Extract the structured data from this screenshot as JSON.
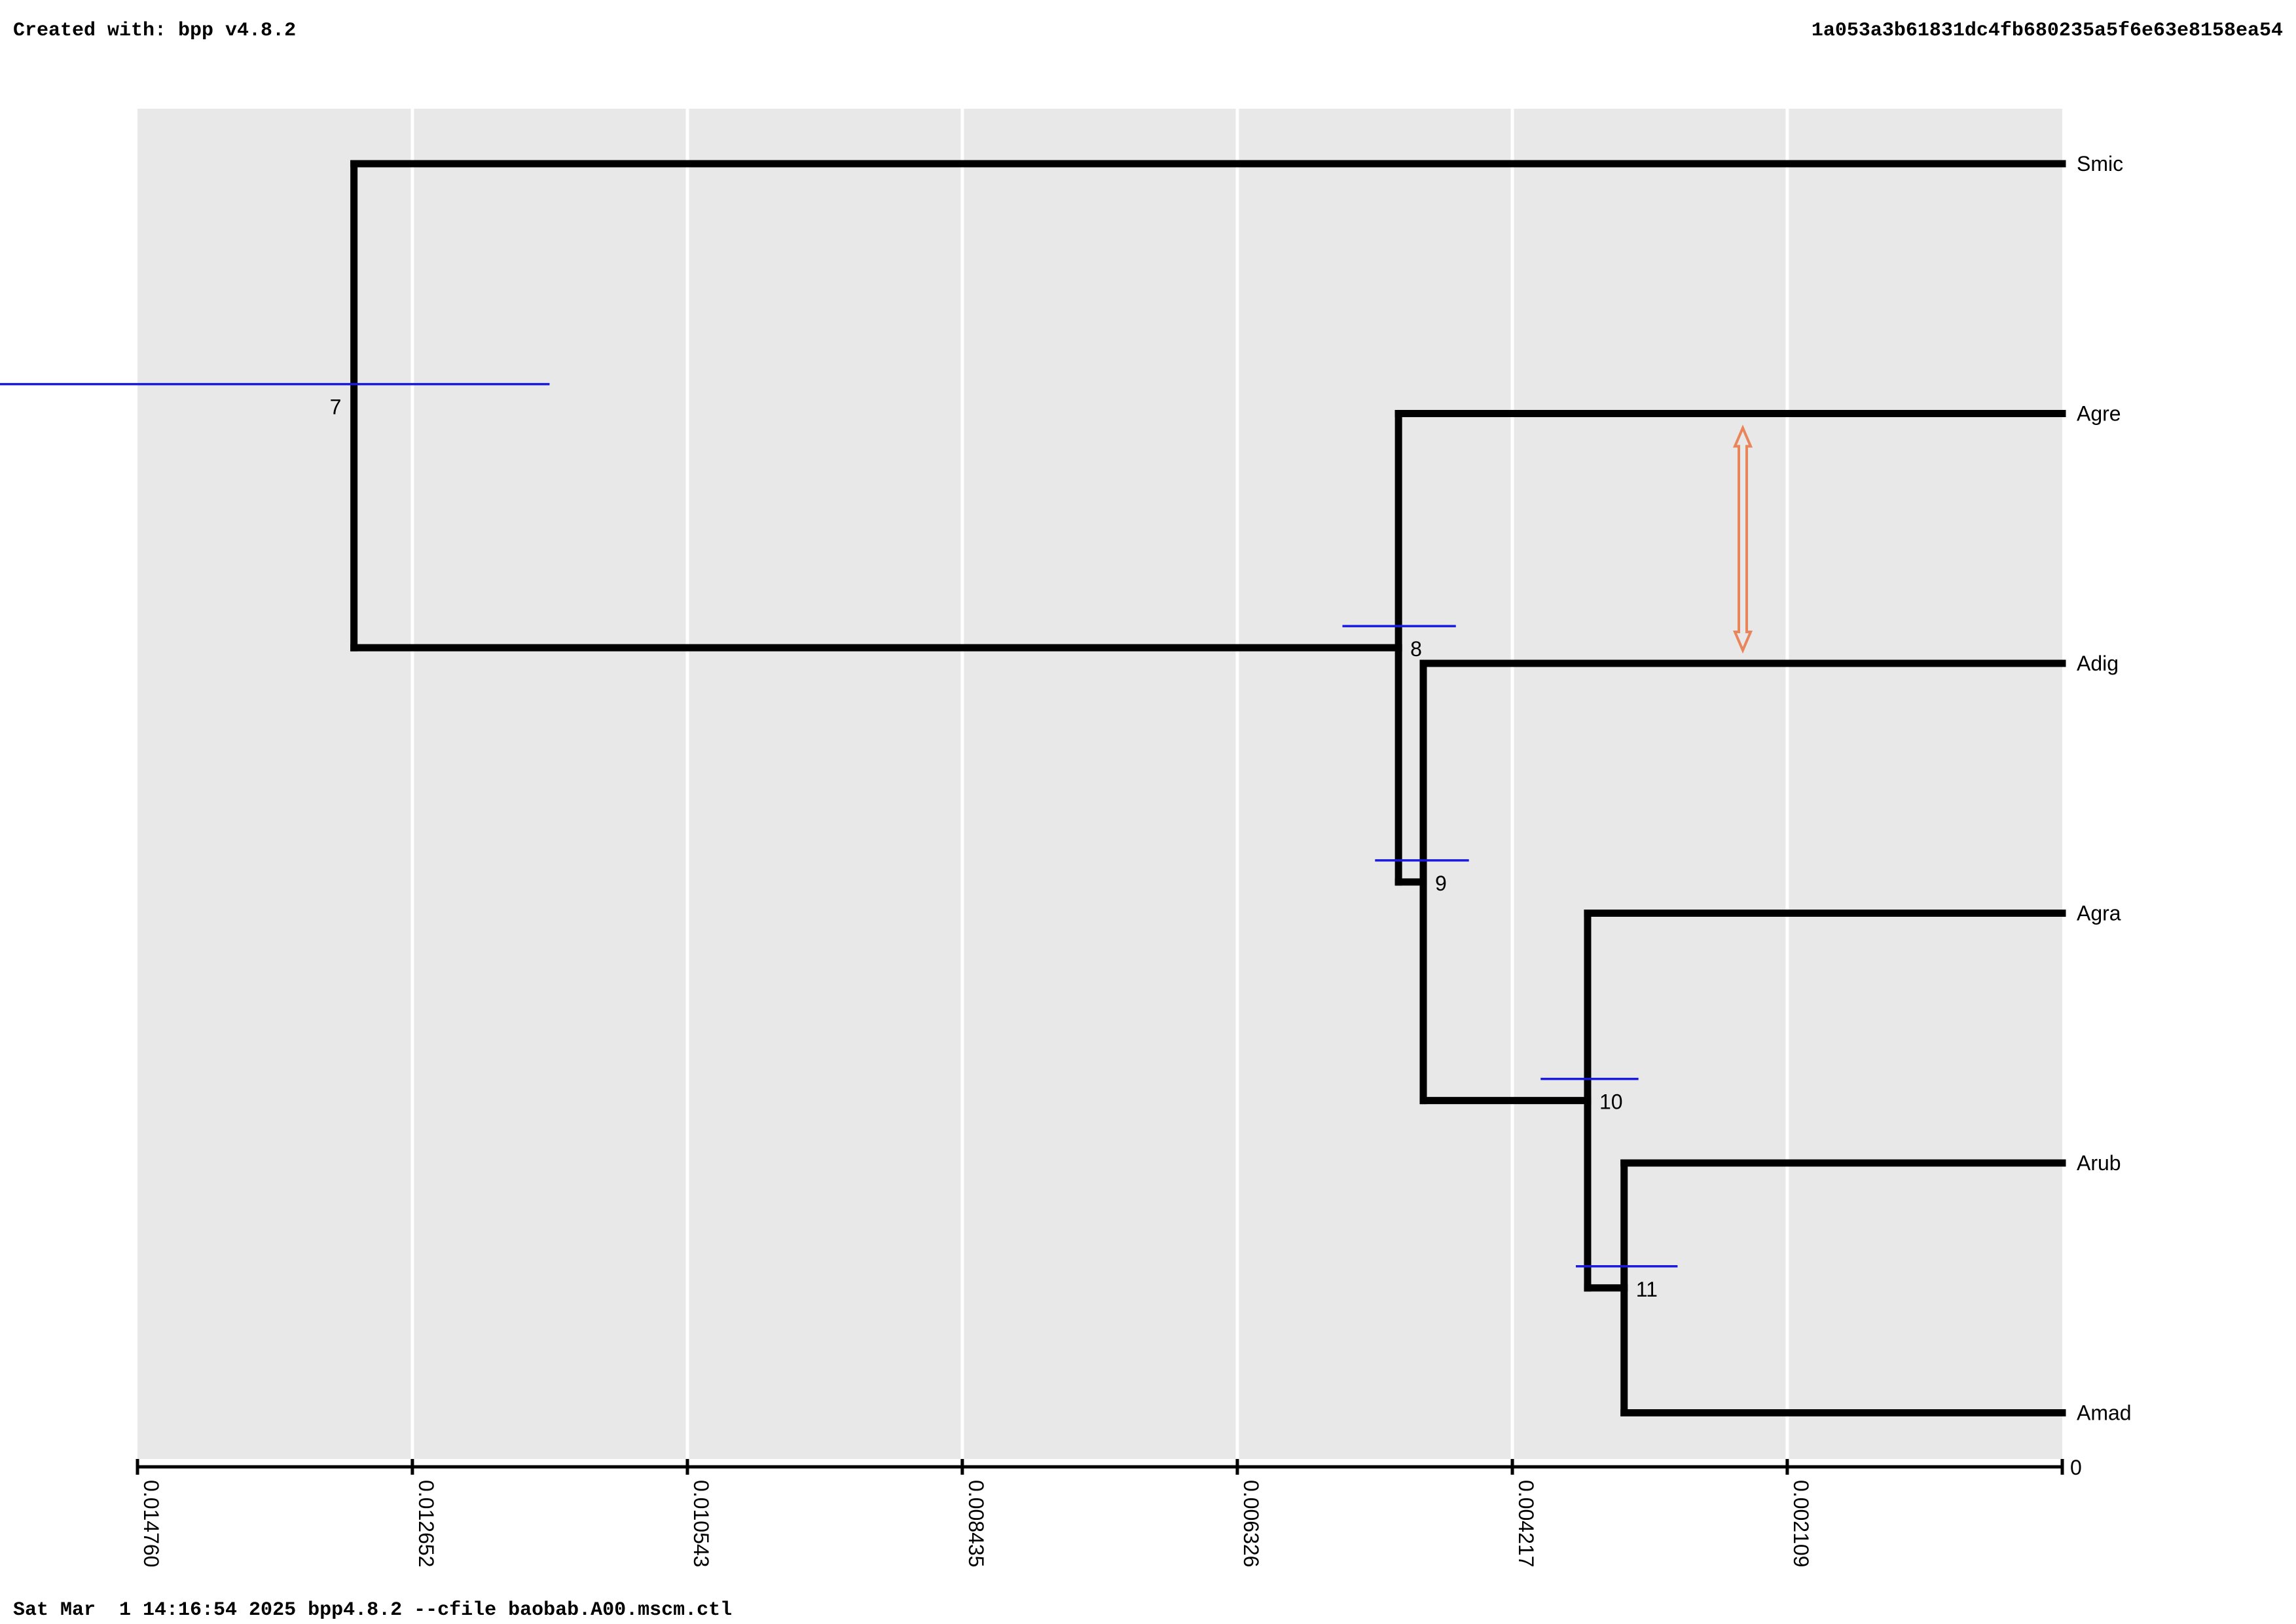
{
  "header": {
    "created_with": "Created with: bpp v4.8.2",
    "hash": "1a053a3b61831dc4fb680235a5f6e63e8158ea54"
  },
  "footer": {
    "command": "Sat Mar  1 14:16:54 2025 bpp4.8.2 --cfile baobab.A00.mscm.ctl"
  },
  "colors": {
    "panel_bg": "#e8e8e8",
    "grid": "#ffffff",
    "branch": "#000000",
    "hpd_bar": "#1a1adc",
    "migration_arrow": "#e8855a"
  },
  "chart_data": {
    "type": "tree",
    "title": "",
    "xlabel": "",
    "ylabel": "",
    "xlim": [
      0.01476,
      0
    ],
    "x_ticks": [
      "0.014760",
      "0.012652",
      "0.010543",
      "0.008435",
      "0.006326",
      "0.004217",
      "0.002109"
    ],
    "x_tick_values": [
      0.01476,
      0.012652,
      0.010543,
      0.008435,
      0.006326,
      0.004217,
      0.002109
    ],
    "zero_label": "0",
    "grid": "vertical",
    "tips": [
      {
        "name": "Smic",
        "order": 0
      },
      {
        "name": "Agre",
        "order": 1
      },
      {
        "name": "Adig",
        "order": 2
      },
      {
        "name": "Agra",
        "order": 3
      },
      {
        "name": "Arub",
        "order": 4
      },
      {
        "name": "Amad",
        "order": 5
      }
    ],
    "nodes": [
      {
        "id": "7",
        "age": 0.0131,
        "hpd": [
          0.0162,
          0.0116
        ],
        "children": [
          "Smic",
          "8"
        ]
      },
      {
        "id": "8",
        "age": 0.00509,
        "hpd": [
          0.00552,
          0.00465
        ],
        "children": [
          "Agre",
          "9"
        ]
      },
      {
        "id": "9",
        "age": 0.0049,
        "hpd": [
          0.00527,
          0.00455
        ],
        "children": [
          "Adig",
          "10"
        ]
      },
      {
        "id": "10",
        "age": 0.00364,
        "hpd": [
          0.004,
          0.00325
        ],
        "children": [
          "Agra",
          "11"
        ]
      },
      {
        "id": "11",
        "age": 0.00336,
        "hpd": [
          0.00373,
          0.00295
        ],
        "children": [
          "Arub",
          "Amad"
        ]
      }
    ],
    "migration": {
      "from": "Agre",
      "to": "Adig",
      "time": 0.00245,
      "direction": "both"
    }
  }
}
